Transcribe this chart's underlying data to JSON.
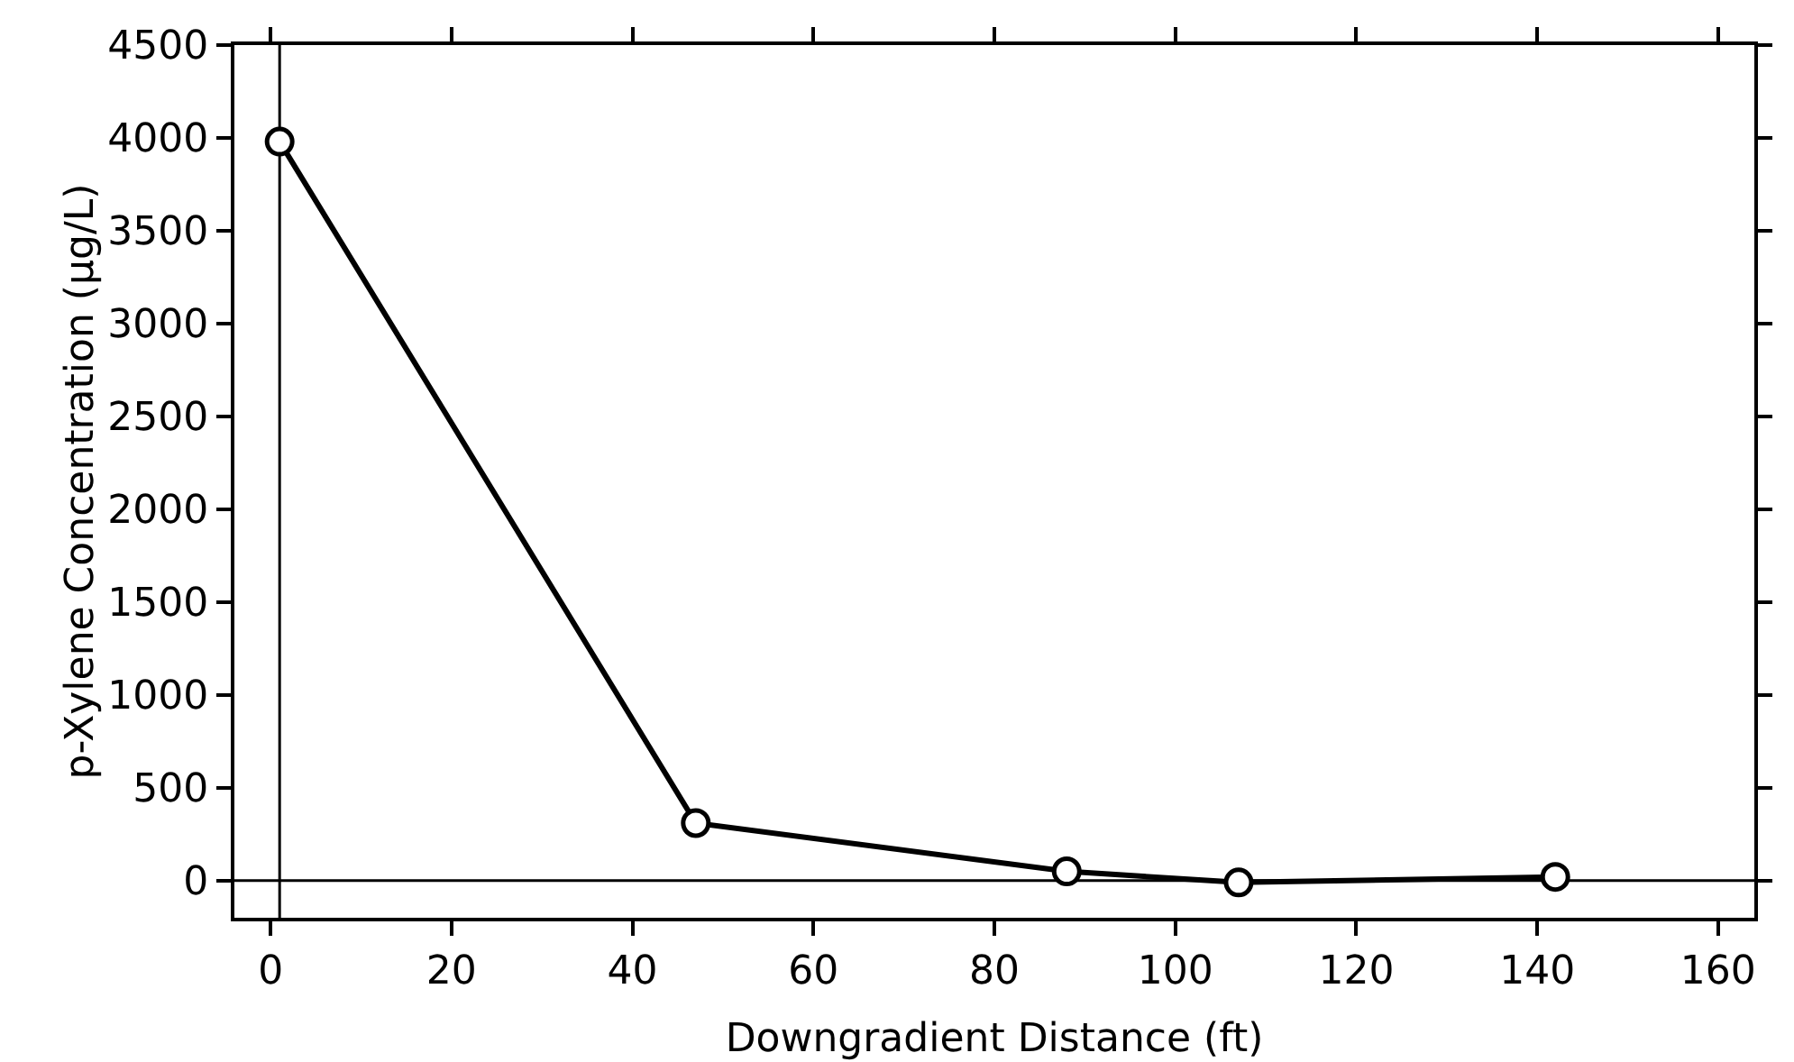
{
  "chart_data": {
    "type": "line",
    "xlabel": "Downgradient Distance (ft)",
    "ylabel": "p-Xylene Concentration (µg/L)",
    "x": [
      1,
      47,
      88,
      107,
      142
    ],
    "series": [
      {
        "color": "#000000",
        "values": [
          3980,
          310,
          50,
          -10,
          20
        ]
      }
    ],
    "xlim": [
      -4,
      164
    ],
    "xticks": [
      0,
      20,
      40,
      60,
      80,
      100,
      120,
      140,
      160
    ],
    "ylim": [
      -200,
      4500
    ],
    "yticks": [
      0,
      500,
      1000,
      1500,
      2000,
      2500,
      3000,
      3500,
      4000,
      4500
    ],
    "ref_lines": [
      {
        "axis": "x",
        "value": 1,
        "color": "#000000"
      },
      {
        "axis": "y",
        "value": 0,
        "color": "#000000"
      }
    ],
    "grid": false,
    "marker": "circle",
    "line_style": "solid"
  }
}
